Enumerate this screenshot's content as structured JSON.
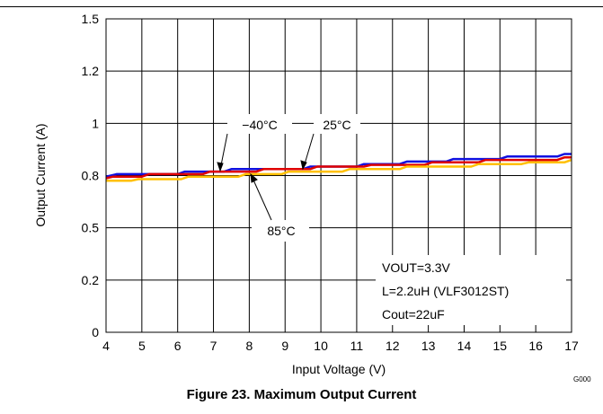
{
  "figure_id": "G000",
  "caption": "Figure 23. Maximum Output Current",
  "annotations": {
    "t_neg40": "−40°C",
    "t_25": "25°C",
    "t_85": "85°C",
    "cond_vout": "VOUT=3.3V",
    "cond_l": "L=2.2uH (VLF3012ST)",
    "cond_cout": "Cout=22uF"
  },
  "chart_data": {
    "type": "line",
    "xlabel": "Input Voltage (V)",
    "ylabel": "Output Current (A)",
    "xlim": [
      4,
      17
    ],
    "ylim": [
      0,
      1.5
    ],
    "x_ticks": [
      "4",
      "5",
      "6",
      "7",
      "8",
      "9",
      "10",
      "11",
      "12",
      "13",
      "14",
      "15",
      "16",
      "17"
    ],
    "y_ticks": [
      {
        "value": 0,
        "label": "0"
      },
      {
        "value": 0.25,
        "label": "0.2"
      },
      {
        "value": 0.5,
        "label": "0.5"
      },
      {
        "value": 0.75,
        "label": "0.8"
      },
      {
        "value": 1.0,
        "label": "1"
      },
      {
        "value": 1.25,
        "label": "1.2"
      },
      {
        "value": 1.5,
        "label": "1.5"
      }
    ],
    "grid": true,
    "series": [
      {
        "name": "−40°C",
        "color": "#1010e0",
        "x": [
          4,
          4.3,
          6,
          6.2,
          7.3,
          7.5,
          9.5,
          9.7,
          11,
          11.2,
          12.2,
          12.4,
          13.5,
          13.7,
          15,
          15.2,
          16.6,
          16.8,
          17
        ],
        "y": [
          0.745,
          0.757,
          0.757,
          0.769,
          0.769,
          0.781,
          0.781,
          0.793,
          0.793,
          0.805,
          0.805,
          0.817,
          0.817,
          0.829,
          0.829,
          0.841,
          0.841,
          0.853,
          0.853
        ]
      },
      {
        "name": "25°C",
        "color": "#e00000",
        "x": [
          4,
          4.2,
          5,
          5.2,
          6.7,
          6.9,
          8.2,
          8.4,
          9.7,
          9.9,
          11.2,
          11.4,
          12.9,
          13.1,
          14.4,
          14.6,
          16.6,
          16.8,
          17
        ],
        "y": [
          0.737,
          0.745,
          0.745,
          0.757,
          0.757,
          0.769,
          0.769,
          0.781,
          0.781,
          0.793,
          0.793,
          0.801,
          0.801,
          0.813,
          0.813,
          0.825,
          0.825,
          0.837,
          0.837
        ]
      },
      {
        "name": "85°C",
        "color": "#ffc000",
        "x": [
          4,
          4.7,
          4.9,
          6.1,
          6.3,
          7.7,
          7.9,
          8.9,
          9.1,
          10.6,
          10.8,
          12.2,
          12.4,
          14.2,
          14.4,
          15.6,
          15.8,
          16.8,
          17
        ],
        "y": [
          0.725,
          0.725,
          0.733,
          0.733,
          0.745,
          0.745,
          0.757,
          0.757,
          0.769,
          0.769,
          0.781,
          0.781,
          0.793,
          0.793,
          0.805,
          0.805,
          0.813,
          0.813,
          0.825
        ]
      }
    ]
  }
}
